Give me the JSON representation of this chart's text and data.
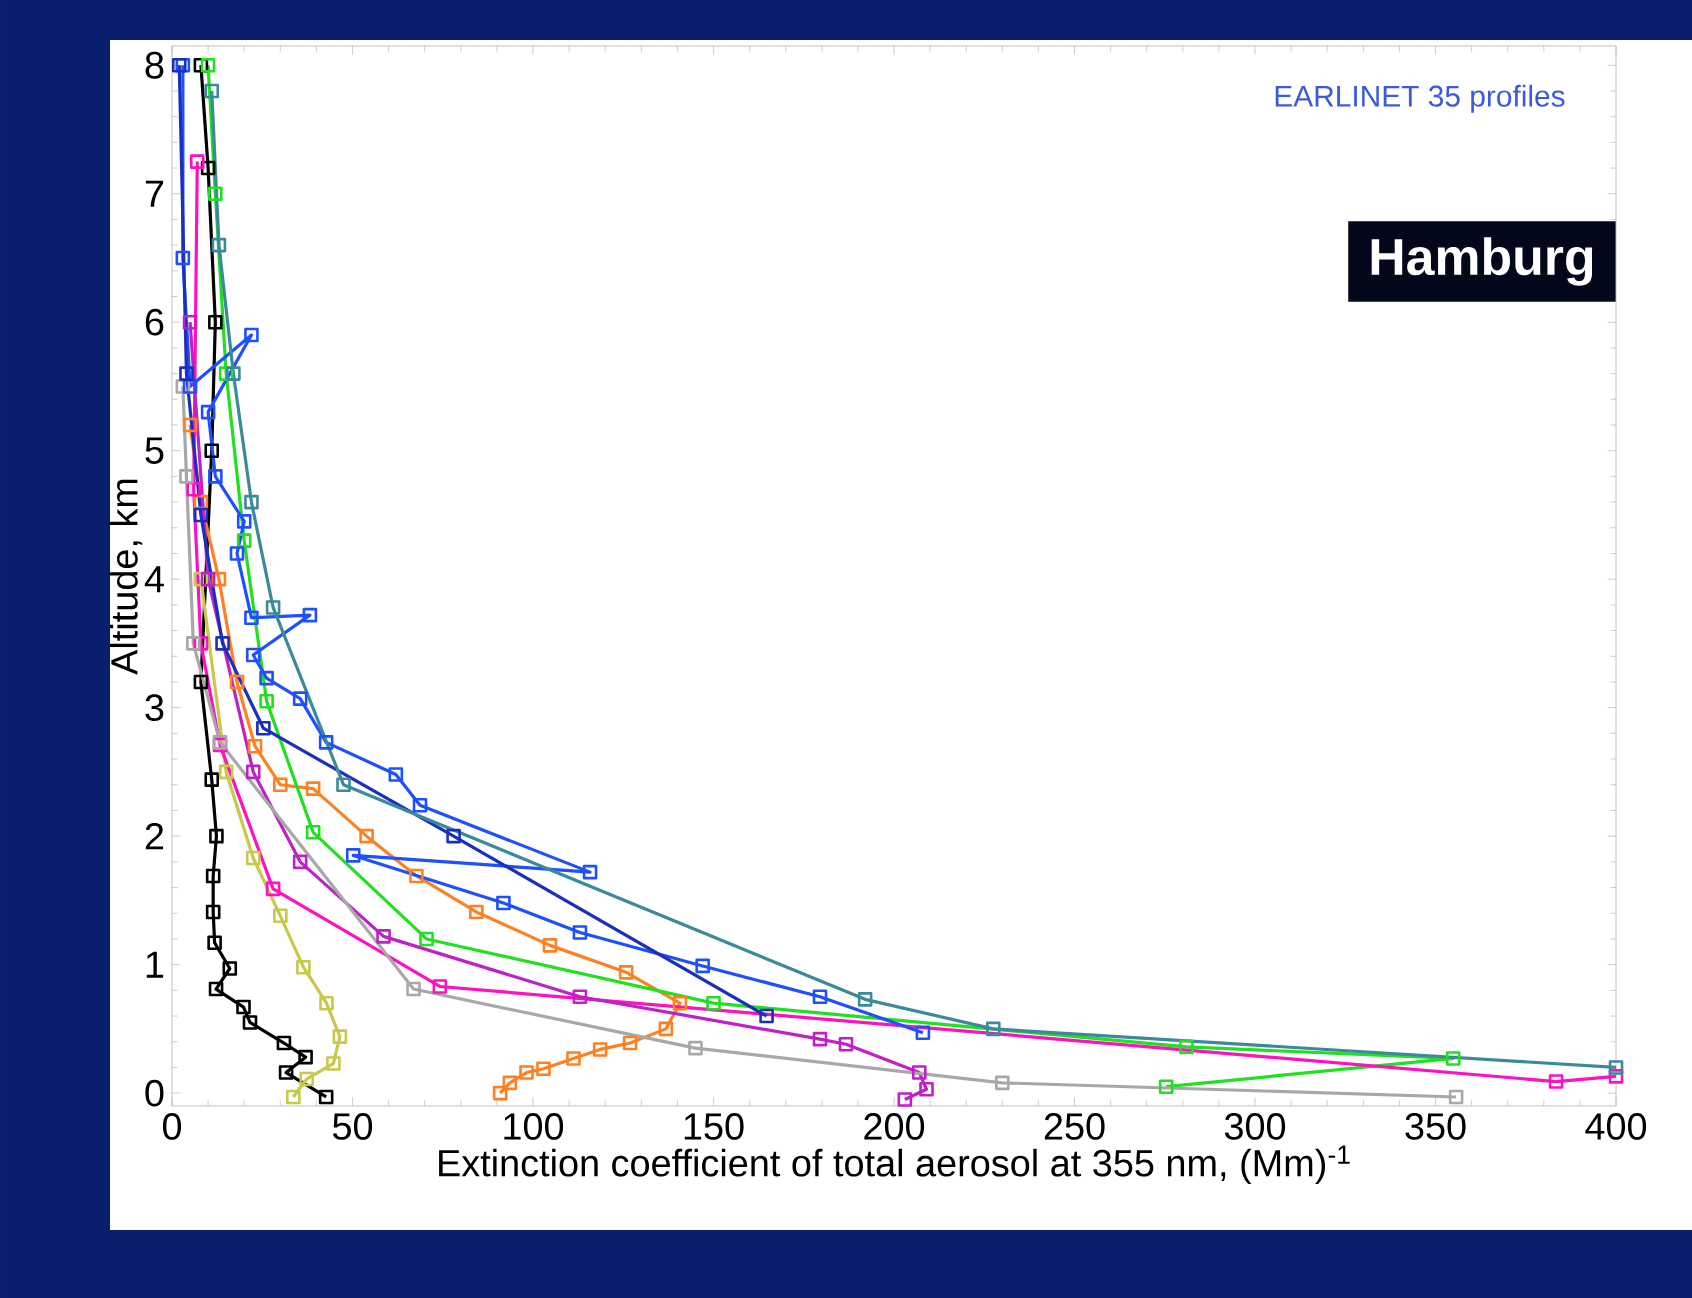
{
  "chart_data": {
    "type": "line",
    "xlabel": "Extinction coefficient of total aerosol at 355 nm, (Mm)$^{-1}$",
    "ylabel": "Altitude, km",
    "annotations": [
      "EARLINET 35 profiles",
      "Hamburg"
    ],
    "xlim": [
      0,
      400
    ],
    "ylim": [
      -0.1,
      8.15
    ],
    "xticks": [
      0,
      50,
      100,
      150,
      200,
      250,
      300,
      350,
      400
    ],
    "yticks": [
      0,
      1,
      2,
      3,
      4,
      5,
      6,
      7,
      8
    ],
    "marker": "square",
    "grid": false,
    "series": [
      {
        "color": "#000000",
        "x": [
          8,
          10,
          12,
          11,
          8,
          11,
          12.3,
          11.4,
          11.4,
          11.8,
          16,
          12.2,
          19.8,
          21.6,
          31,
          37,
          31.6,
          42.7
        ],
        "values": [
          8,
          7.2,
          6,
          5,
          3.2,
          2.44,
          2.0,
          1.69,
          1.41,
          1.17,
          0.97,
          0.81,
          0.67,
          0.55,
          0.39,
          0.28,
          0.16,
          -0.03
        ]
      },
      {
        "color": "#c8c84a",
        "x": [
          8,
          15,
          22.5,
          30,
          36.4,
          42.8,
          46.5,
          44.7,
          37.3,
          33.6
        ],
        "values": [
          4,
          2.5,
          1.83,
          1.38,
          0.98,
          0.7,
          0.44,
          0.23,
          0.11,
          -0.03
        ]
      },
      {
        "color": "#ff8020",
        "x": [
          5,
          8,
          13,
          18,
          23,
          30,
          39.1,
          53.9,
          67.7,
          84.3,
          104.7,
          125.8,
          140.7,
          136.8,
          126.9,
          118.6,
          111.2,
          102.9,
          98.2,
          93.6,
          90.9
        ],
        "values": [
          5.2,
          4.6,
          4,
          3.2,
          2.7,
          2.4,
          2.37,
          2.0,
          1.69,
          1.41,
          1.15,
          0.94,
          0.7,
          0.5,
          0.39,
          0.34,
          0.27,
          0.19,
          0.16,
          0.08,
          0
        ]
      },
      {
        "color": "#20e020",
        "x": [
          10,
          12,
          15,
          20,
          26.2,
          39.1,
          70.5,
          150,
          281,
          354.9,
          275.4
        ],
        "values": [
          8,
          7,
          5.6,
          4.3,
          3.05,
          2.03,
          1.2,
          0.7,
          0.36,
          0.27,
          0.05
        ]
      },
      {
        "color": "#ff10c0",
        "x": [
          7,
          6,
          8,
          13.3,
          28,
          74.2,
          383.4,
          400
        ],
        "values": [
          7.25,
          4.7,
          3.5,
          2.71,
          1.59,
          0.83,
          0.09,
          0.13
        ]
      },
      {
        "color": "#c020c8",
        "x": [
          5,
          10,
          22.5,
          35.5,
          58.6,
          113,
          179.5,
          186.7,
          207,
          209,
          203
        ],
        "values": [
          6,
          4,
          2.5,
          1.8,
          1.22,
          0.75,
          0.42,
          0.38,
          0.16,
          0.03,
          -0.05
        ]
      },
      {
        "color": "#a8a8a8",
        "x": [
          3,
          4,
          5.9,
          13.3,
          66.9,
          145,
          230,
          355.7
        ],
        "values": [
          5.5,
          4.8,
          3.5,
          2.73,
          0.81,
          0.35,
          0.08,
          -0.03
        ]
      },
      {
        "color": "#1e50ff",
        "x": [
          3,
          3,
          5,
          22,
          10,
          12,
          20,
          18,
          22,
          38.2,
          22.5,
          26.2,
          35.5,
          42.7,
          62,
          68.7,
          78,
          115.8,
          50.2,
          91.8,
          113,
          147,
          179.5,
          208
        ],
        "values": [
          8,
          6.5,
          5.5,
          5.9,
          5.3,
          4.8,
          4.45,
          4.2,
          3.7,
          3.72,
          3.41,
          3.23,
          3.07,
          2.73,
          2.48,
          2.24,
          null,
          1.72,
          1.85,
          1.48,
          1.25,
          0.99,
          0.75,
          0.47
        ]
      },
      {
        "color": "#1a2fc0",
        "x": [
          2,
          4,
          8,
          14,
          25.3,
          78,
          164.7
        ],
        "values": [
          8,
          5.6,
          4.5,
          3.5,
          2.84,
          2.0,
          0.6
        ]
      },
      {
        "color": "#3a8a9a",
        "x": [
          11,
          13,
          17,
          22,
          28,
          47.5,
          192,
          227.5,
          400
        ],
        "values": [
          7.8,
          6.6,
          5.6,
          4.6,
          3.78,
          2.4,
          0.73,
          0.5,
          0.2
        ]
      }
    ]
  }
}
